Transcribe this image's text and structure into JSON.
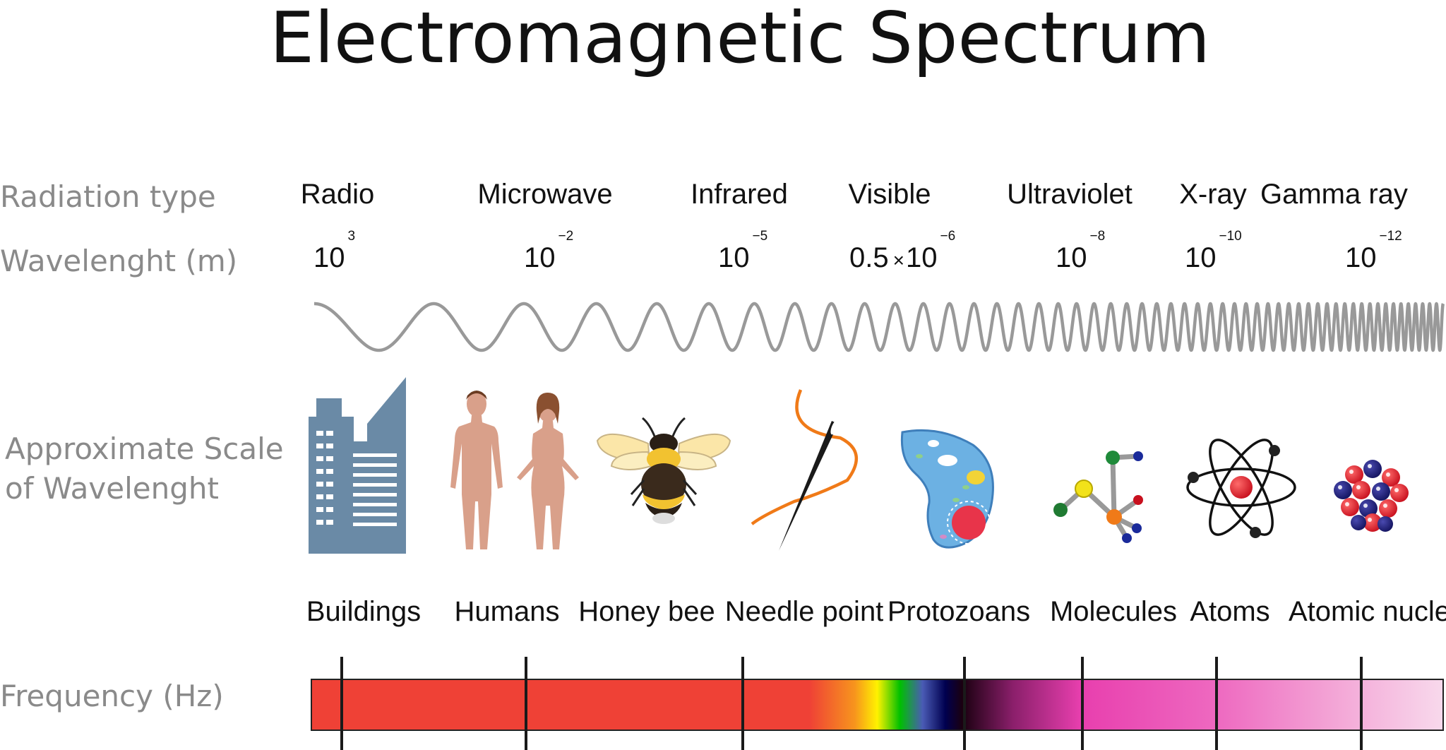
{
  "title": "Electromagnetic Spectrum",
  "row_labels": {
    "radiation_type": "Radiation type",
    "wavelength": "Wavelenght (m)",
    "scale_line1": "Approximate Scale",
    "scale_line2": "of Wavelenght",
    "frequency": "Frequency (Hz)"
  },
  "radiation_types": [
    "Radio",
    "Microwave",
    "Infrared",
    "Visible",
    "Ultraviolet",
    "X-ray",
    "Gamma ray"
  ],
  "wavelengths": [
    {
      "prefix": "",
      "base": "10",
      "exp": "3"
    },
    {
      "prefix": "",
      "base": "10",
      "exp": "−2"
    },
    {
      "prefix": "",
      "base": "10",
      "exp": "−5"
    },
    {
      "prefix": "0.5",
      "base": "10",
      "exp": "−6"
    },
    {
      "prefix": "",
      "base": "10",
      "exp": "−8"
    },
    {
      "prefix": "",
      "base": "10",
      "exp": "−10"
    },
    {
      "prefix": "",
      "base": "10",
      "exp": "−12"
    }
  ],
  "multiply_sign": "×",
  "scale_objects": [
    "Buildings",
    "Humans",
    "Honey bee",
    "Needle point",
    "Protozoans",
    "Molecules",
    "Atoms",
    "Atomic nuclei"
  ],
  "icons": [
    "buildings-icon",
    "humans-icon",
    "honey-bee-icon",
    "needle-icon",
    "protozoan-icon",
    "molecule-icon",
    "atom-icon",
    "atomic-nucleus-icon"
  ],
  "colors": {
    "wave": "#999999",
    "building": "#6a8aa6",
    "skin": "#d9a08a",
    "frequency_red": "#ef4136",
    "frequency_magenta": "#e83fae",
    "frequency_pink": "#f7d6ea"
  }
}
